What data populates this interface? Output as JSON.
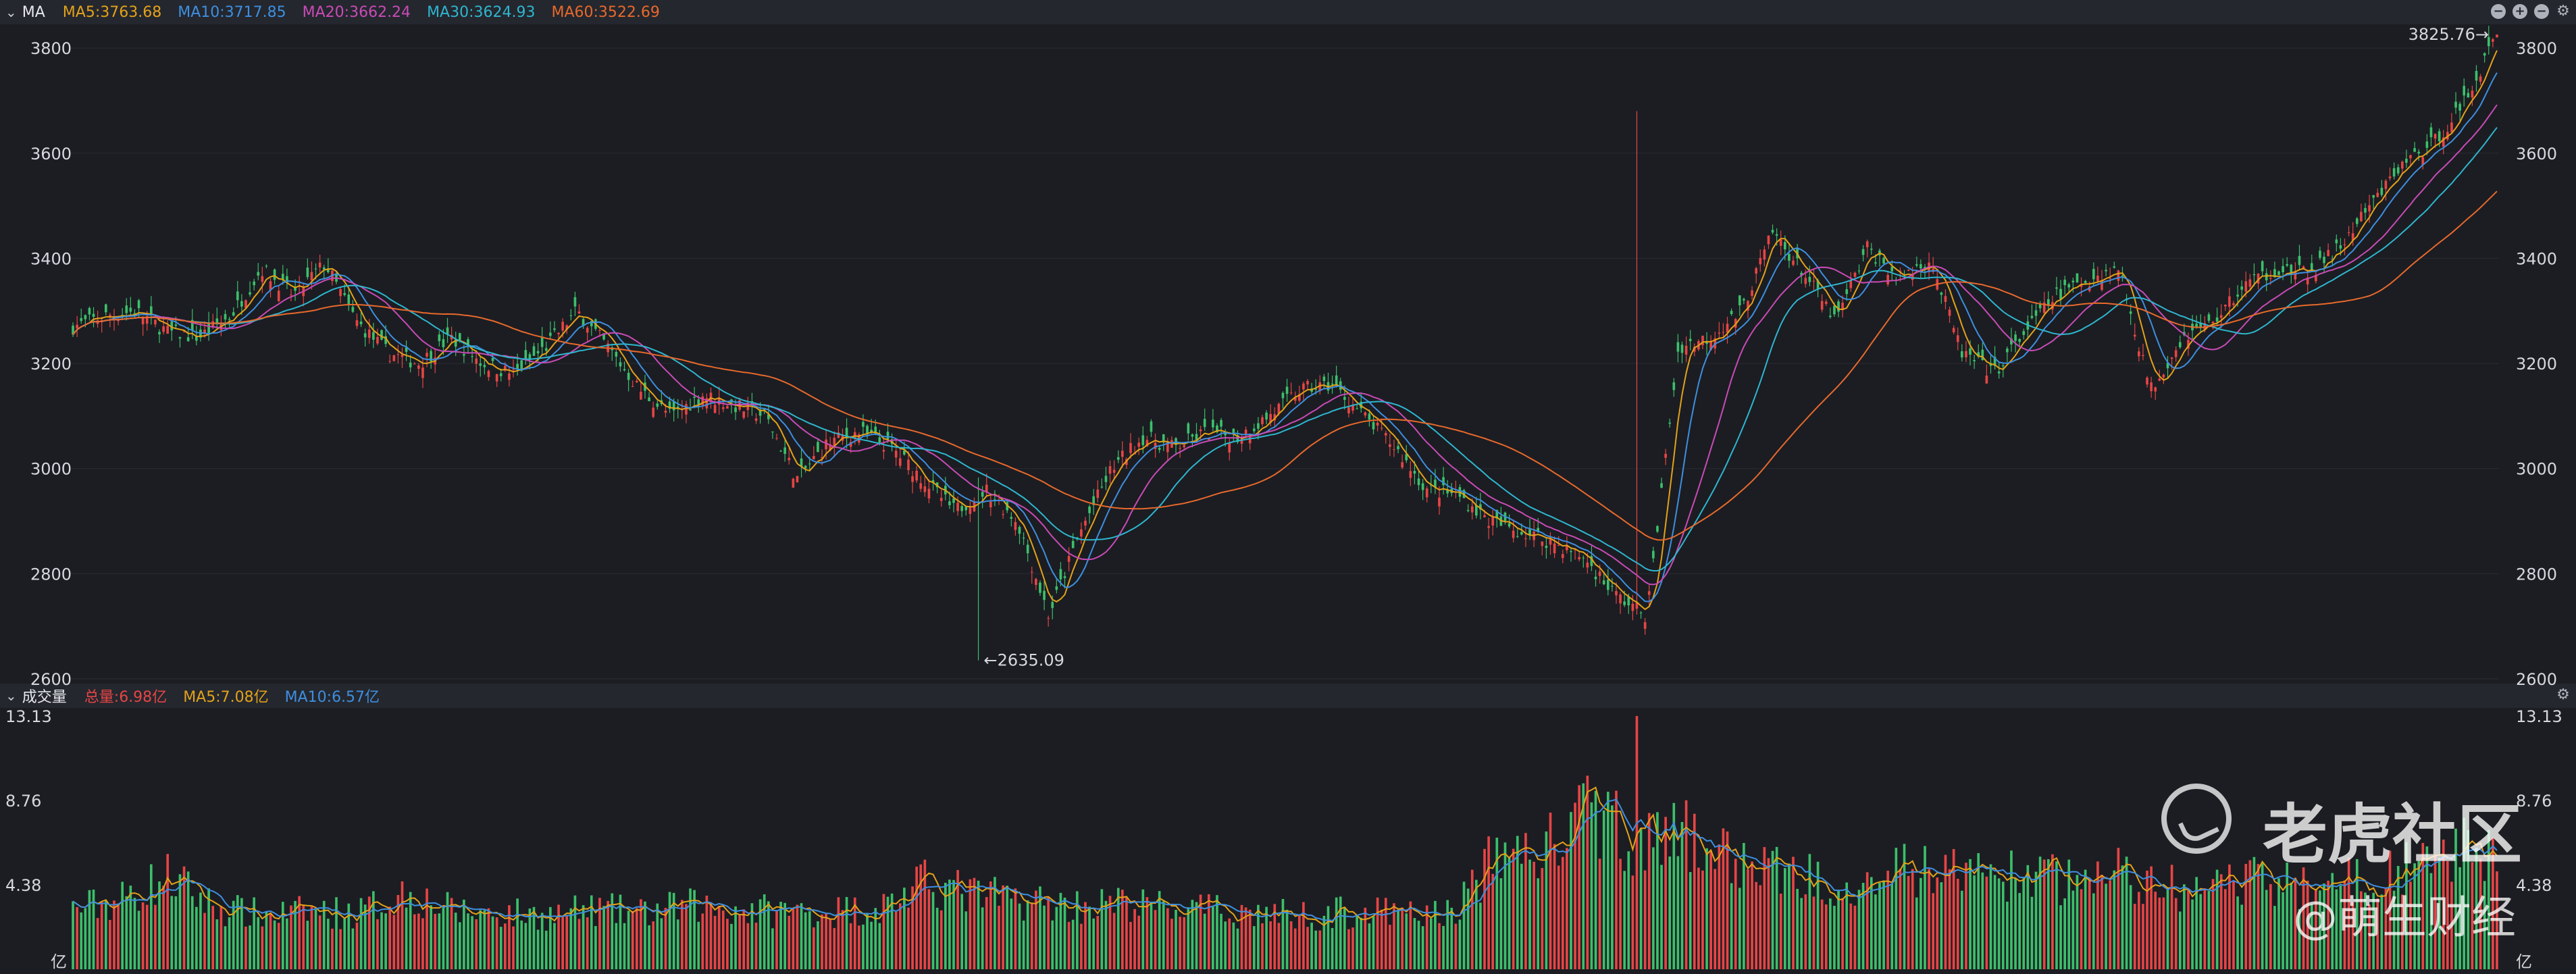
{
  "price_panel": {
    "title": "MA",
    "indicators": [
      {
        "label": "MA5:3763.68",
        "color": "#e3a21a"
      },
      {
        "label": "MA10:3717.85",
        "color": "#3e8fe0"
      },
      {
        "label": "MA20:3662.24",
        "color": "#c94bb6"
      },
      {
        "label": "MA30:3624.93",
        "color": "#2fb6cf"
      },
      {
        "label": "MA60:3522.69",
        "color": "#e8692c"
      }
    ],
    "y_ticks": [
      "3800",
      "3600",
      "3400",
      "3200",
      "3000",
      "2800",
      "2600"
    ],
    "high_annotation": "3825.76→",
    "low_annotation": "←2635.09"
  },
  "volume_panel": {
    "title": "成交量",
    "indicators": [
      {
        "label": "总量:6.98亿",
        "color": "#e64545"
      },
      {
        "label": "MA5:7.08亿",
        "color": "#e3a21a"
      },
      {
        "label": "MA10:6.57亿",
        "color": "#3e8fe0"
      }
    ],
    "y_ticks": [
      "13.13",
      "8.76",
      "4.38"
    ],
    "unit": "亿"
  },
  "watermark": {
    "brand": "老虎社区",
    "author": "@萌生财经"
  },
  "colors": {
    "up": "#e64545",
    "down": "#3cbf6b",
    "background": "#1b1d22",
    "header": "#24272e"
  },
  "chart_data": {
    "type": "candlestick",
    "ylim": [
      2600,
      3840
    ],
    "volume_ylim": [
      0,
      13.13
    ],
    "close_anchors": [
      3270,
      3290,
      3300,
      3260,
      3250,
      3290,
      3380,
      3330,
      3390,
      3280,
      3220,
      3200,
      3250,
      3200,
      3180,
      3230,
      3300,
      3230,
      3150,
      3100,
      3140,
      3120,
      3100,
      2980,
      3050,
      3070,
      3040,
      2980,
      2920,
      2960,
      2900,
      2720,
      2880,
      3000,
      3060,
      3040,
      3070,
      3060,
      3100,
      3150,
      3160,
      3100,
      3040,
      2960,
      2950,
      2900,
      2880,
      2860,
      2830,
      2760,
      2720,
      3230,
      3250,
      3300,
      3450,
      3370,
      3280,
      3420,
      3360,
      3400,
      3220,
      3180,
      3260,
      3330,
      3360,
      3380,
      3150,
      3250,
      3280,
      3350,
      3380,
      3370,
      3420,
      3500,
      3580,
      3620,
      3700,
      3825.76
    ],
    "volume_anchors": [
      3.1,
      3.6,
      4.8,
      3.2,
      2.8,
      3.0,
      2.9,
      4.0,
      3.0,
      2.9,
      2.8,
      3.1,
      2.9,
      3.3,
      3.1,
      3.0,
      3.0,
      3.2,
      4.5,
      3.8,
      3.6,
      3.3,
      3.4,
      3.2,
      3.0,
      2.9,
      2.8,
      3.0,
      2.8,
      2.9,
      6.0,
      6.2,
      8.2,
      6.5,
      6.8,
      5.6,
      5.0,
      4.6,
      4.8,
      5.2,
      5.0,
      4.8,
      4.6,
      5.0,
      4.2,
      4.0,
      4.6,
      4.4,
      4.6,
      5.0,
      6.0,
      6.6
    ],
    "high": 3825.76,
    "low": 2635.09,
    "last_volume_yi": 6.98,
    "ma_lines": [
      "MA5",
      "MA10",
      "MA20",
      "MA30",
      "MA60"
    ],
    "volume_ma_lines": [
      "MA5",
      "MA10"
    ]
  }
}
